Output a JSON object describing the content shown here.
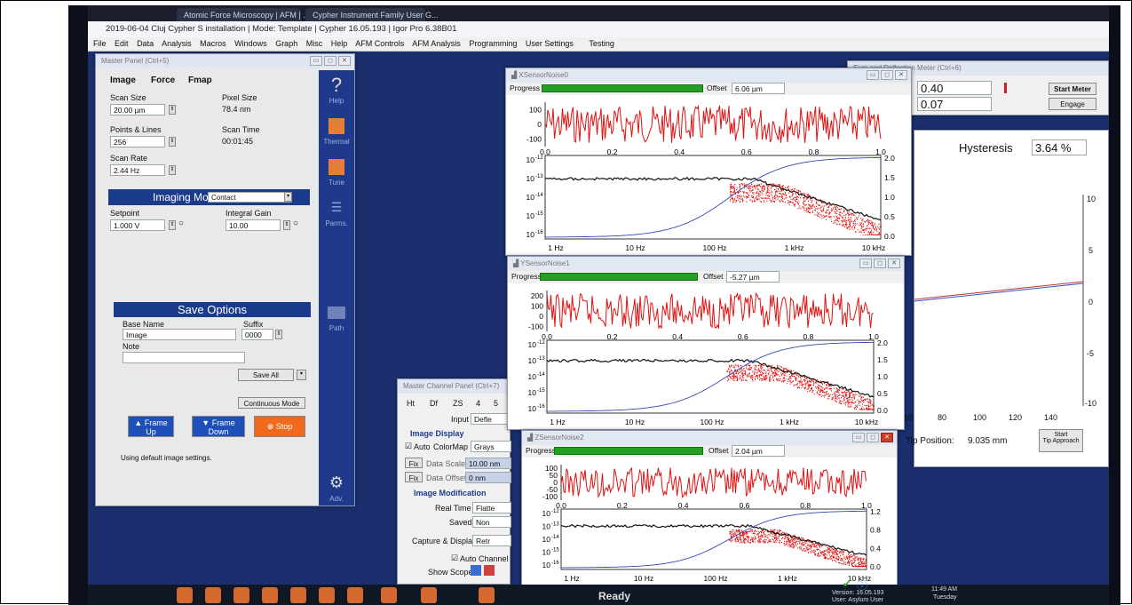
{
  "browser_tabs": [
    "Atomic Force Microscopy | AFM | ...",
    "Cypher Instrument Family User G..."
  ],
  "app_title": "2019-06-04 Cluj Cypher S installation | Mode: Template | Cypher 16.05.193 | Igor Pro 6.38B01",
  "menu": [
    "File",
    "Edit",
    "Data",
    "Analysis",
    "Macros",
    "Windows",
    "Graph",
    "Misc",
    "Help",
    "AFM Controls",
    "AFM Analysis",
    "Programming",
    "User Settings",
    "Testing"
  ],
  "master_panel": {
    "title": "Master Panel (Ctrl+5)",
    "tabs": [
      "Image",
      "Force",
      "Fmap"
    ],
    "scan_size_label": "Scan Size",
    "scan_size": "20.00 µm",
    "pixel_size_label": "Pixel Size",
    "pixel_size": "78.4 nm",
    "points_lines_label": "Points & Lines",
    "points_lines": "256",
    "scan_time_label": "Scan Time",
    "scan_time": "00:01:45",
    "scan_rate_label": "Scan Rate",
    "scan_rate": "2.44 Hz",
    "imaging_mode_label": "Imaging Mode",
    "imaging_mode": "Contact",
    "setpoint_label": "Setpoint",
    "setpoint": "1.000 V",
    "integral_gain_label": "Integral Gain",
    "integral_gain": "10.00",
    "save_options_label": "Save Options",
    "base_name_label": "Base Name",
    "base_name": "Image",
    "suffix_label": "Suffix",
    "suffix": "0000",
    "note_label": "Note",
    "save_all": "Save All",
    "continuous_mode": "Continuous Mode",
    "frame_up": "Frame Up",
    "frame_down": "Frame Down",
    "stop": "Stop",
    "status_text": "Using default image settings.",
    "sidebar": [
      "Help",
      "Thermal",
      "Tune",
      "Parms.",
      "Path",
      "Adv."
    ]
  },
  "channel_panel": {
    "title": "Master Channel Panel (Ctrl+7)",
    "tabs": [
      "Ht",
      "Df",
      "ZS",
      "4",
      "5"
    ],
    "input_label": "Input",
    "input_value": "Defle",
    "image_display": "Image Display",
    "auto_label": "Auto",
    "colormap_label": "ColorMap",
    "colormap_value": "Grays",
    "fix1": "Fix",
    "data_scale_label": "Data Scale",
    "data_scale": "10.00 nm",
    "fix2": "Fix",
    "data_offset_label": "Data Offset",
    "data_offset": "0 nm",
    "image_modification": "Image Modification",
    "real_time_label": "Real Time",
    "real_time_value": "Flatte",
    "saved_label": "Saved",
    "saved_value": "Non",
    "capture_label": "Capture & Display",
    "capture_value": "Retr",
    "auto_channel": "Auto Channel",
    "show_scope": "Show Scope"
  },
  "right_panels": {
    "meter_title": "Sum and Deflection Meter (Ctrl+6)",
    "value1": "0.40",
    "value2": "0.07",
    "start_meter": "Start Meter",
    "engage": "Engage",
    "hysteresis_label": "Hysteresis",
    "hysteresis_value": "3.64 %",
    "x_ticks": [
      "60",
      "80",
      "100",
      "120",
      "140"
    ],
    "tip_position_label": "Tip Position:",
    "tip_position": "9.035 mm",
    "tip_approach": "Tip Approach",
    "start": "Start",
    "y_ticks": [
      "10",
      "5",
      "0",
      "-5",
      "-10"
    ]
  },
  "noise_windows": [
    {
      "title": "XSensorNoise0",
      "progress_label": "Progress",
      "offset_label": "Offset",
      "offset": "6.06 µm",
      "progress": 1.0,
      "top_ticks": [
        "100",
        "0",
        "-100"
      ],
      "left_ticks": [
        "10",
        "10",
        "10",
        "10",
        "10"
      ],
      "left_exps": [
        "-12",
        "-13",
        "-14",
        "-15",
        "-16"
      ],
      "right_ticks": [
        "2.0",
        "1.5",
        "1.0",
        "0.5",
        "0.0"
      ],
      "upper_ticks": [
        "0.0",
        "0.2",
        "0.4",
        "0.6",
        "0.8",
        "1.0"
      ],
      "x_ticks": [
        "1 Hz",
        "10 Hz",
        "100 Hz",
        "1 kHz",
        "10 kHz"
      ]
    },
    {
      "title": "YSensorNoise1",
      "progress_label": "Progress",
      "offset_label": "Offset",
      "offset": "-5.27 µm",
      "progress": 1.0,
      "top_ticks": [
        "200",
        "100",
        "0",
        "-100"
      ],
      "left_ticks": [
        "10",
        "10",
        "10",
        "10",
        "10"
      ],
      "left_exps": [
        "-12",
        "-13",
        "-14",
        "-15",
        "-16"
      ],
      "right_ticks": [
        "2.0",
        "1.5",
        "1.0",
        "0.5",
        "0.0"
      ],
      "upper_ticks": [
        "0.0",
        "0.2",
        "0.4",
        "0.6",
        "0.8",
        "1.0"
      ],
      "x_ticks": [
        "1 Hz",
        "10 Hz",
        "100 Hz",
        "1 kHz",
        "10 kHz"
      ]
    },
    {
      "title": "ZSensorNoise2",
      "progress_label": "Progress",
      "offset_label": "Offset",
      "offset": "2.04 µm",
      "progress": 1.0,
      "top_ticks": [
        "100",
        "50",
        "0",
        "-50",
        "-100"
      ],
      "left_ticks": [
        "10",
        "10",
        "10",
        "10",
        "10"
      ],
      "left_exps": [
        "-12",
        "-13",
        "-14",
        "-15",
        "-16"
      ],
      "right_ticks": [
        "1.2",
        "0.8",
        "0.4",
        "0.0"
      ],
      "upper_ticks": [
        "0.0",
        "0.2",
        "0.4",
        "0.6",
        "0.8",
        "1.0"
      ],
      "x_ticks": [
        "1 Hz",
        "10 Hz",
        "100 Hz",
        "1 kHz",
        "10 kHz"
      ]
    }
  ],
  "taskbar": {
    "status": "Ready",
    "version": "Version: 16.05.193",
    "user": "User: Asylum User",
    "time": "11:49 AM",
    "day": "Tuesday"
  },
  "colors": {
    "screen_bg": "#1b2f6e",
    "accent_blue": "#1a3b8c",
    "progress_green": "#23a023",
    "noise_red": "#e01010",
    "stop_orange": "#f06a1e"
  }
}
